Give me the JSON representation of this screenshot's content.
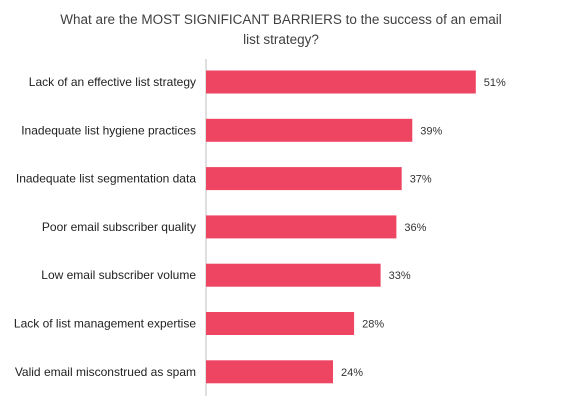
{
  "chart_data": {
    "type": "bar",
    "orientation": "horizontal",
    "title_lines": [
      "What are the MOST SIGNIFICANT  BARRIERS to the success of an email",
      "list strategy?"
    ],
    "categories": [
      "Lack of an effective list strategy",
      "Inadequate list hygiene practices",
      "Inadequate list segmentation data",
      "Poor email subscriber quality",
      "Low email subscriber volume",
      "Lack of list management expertise",
      "Valid email misconstrued as spam"
    ],
    "values": [
      51,
      39,
      37,
      36,
      33,
      28,
      24
    ],
    "value_labels": [
      "51%",
      "39%",
      "37%",
      "36%",
      "33%",
      "28%",
      "24%"
    ],
    "xlabel": "",
    "ylabel": "",
    "grid": false,
    "legend": "none",
    "bar_color": "#ee4563",
    "axis_color": "#bfbfbf"
  }
}
